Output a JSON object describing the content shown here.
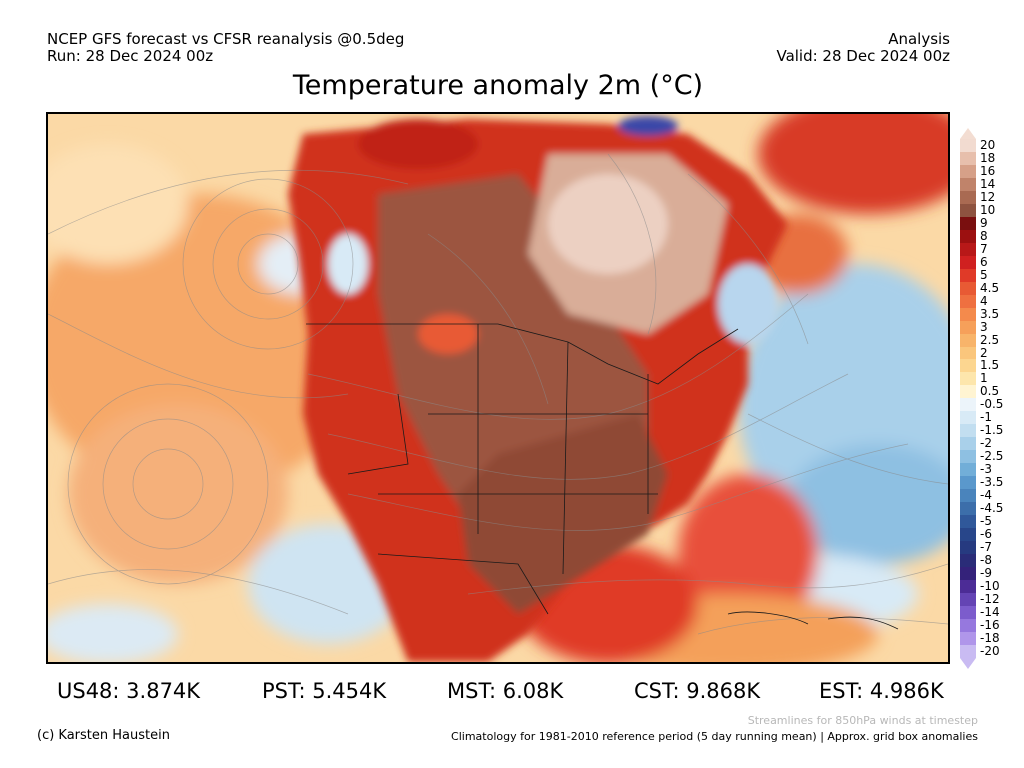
{
  "header": {
    "left_line1": "NCEP GFS forecast vs CFSR reanalysis @0.5deg",
    "left_line2": "Run: 28 Dec 2024 00z",
    "right_line1": "Analysis",
    "right_line2": "Valid: 28 Dec 2024 00z"
  },
  "title": "Temperature anomaly 2m (°C)",
  "colorbar": {
    "labels": [
      "20",
      "18",
      "16",
      "14",
      "12",
      "10",
      "9",
      "8",
      "7",
      "6",
      "5",
      "4.5",
      "4",
      "3.5",
      "3",
      "2.5",
      "2",
      "1.5",
      "1",
      "0.5",
      "-0.5",
      "-1",
      "-1.5",
      "-2",
      "-2.5",
      "-3",
      "-3.5",
      "-4",
      "-4.5",
      "-5",
      "-6",
      "-7",
      "-8",
      "-9",
      "-10",
      "-12",
      "-14",
      "-16",
      "-18",
      "-20"
    ],
    "colors": [
      "#f2dbd0",
      "#e7bfac",
      "#d6a088",
      "#c0836a",
      "#a96a52",
      "#8e5340",
      "#7a0f0f",
      "#9c1010",
      "#b81818",
      "#d02020",
      "#e03a28",
      "#e85a34",
      "#ef7040",
      "#f48a4c",
      "#f6a05a",
      "#f8b46a",
      "#fac67c",
      "#fcd690",
      "#fde6ac",
      "#fff4d2",
      "#ecf4fa",
      "#d8eaf6",
      "#c2def0",
      "#a9d0ea",
      "#8ec0e2",
      "#72aed8",
      "#5a98cc",
      "#4a84bc",
      "#3c6eaa",
      "#30589a",
      "#28468a",
      "#263a80",
      "#2a2c78",
      "#34227a",
      "#4c2c96",
      "#6444b4",
      "#7c5ccc",
      "#9678de",
      "#b096ea",
      "#c9bbf2"
    ]
  },
  "stats": [
    {
      "label": "US48: 3.874K"
    },
    {
      "label": "PST: 5.454K"
    },
    {
      "label": "MST: 6.08K"
    },
    {
      "label": "CST: 9.868K"
    },
    {
      "label": "EST: 4.986K"
    }
  ],
  "footer": {
    "credit": "(c) Karsten Haustein",
    "note": "Streamlines for 850hPa winds at timestep",
    "climatology": "Climatology for 1981-2010 reference period (5 day running mean) | Approx. grid box anomalies"
  }
}
